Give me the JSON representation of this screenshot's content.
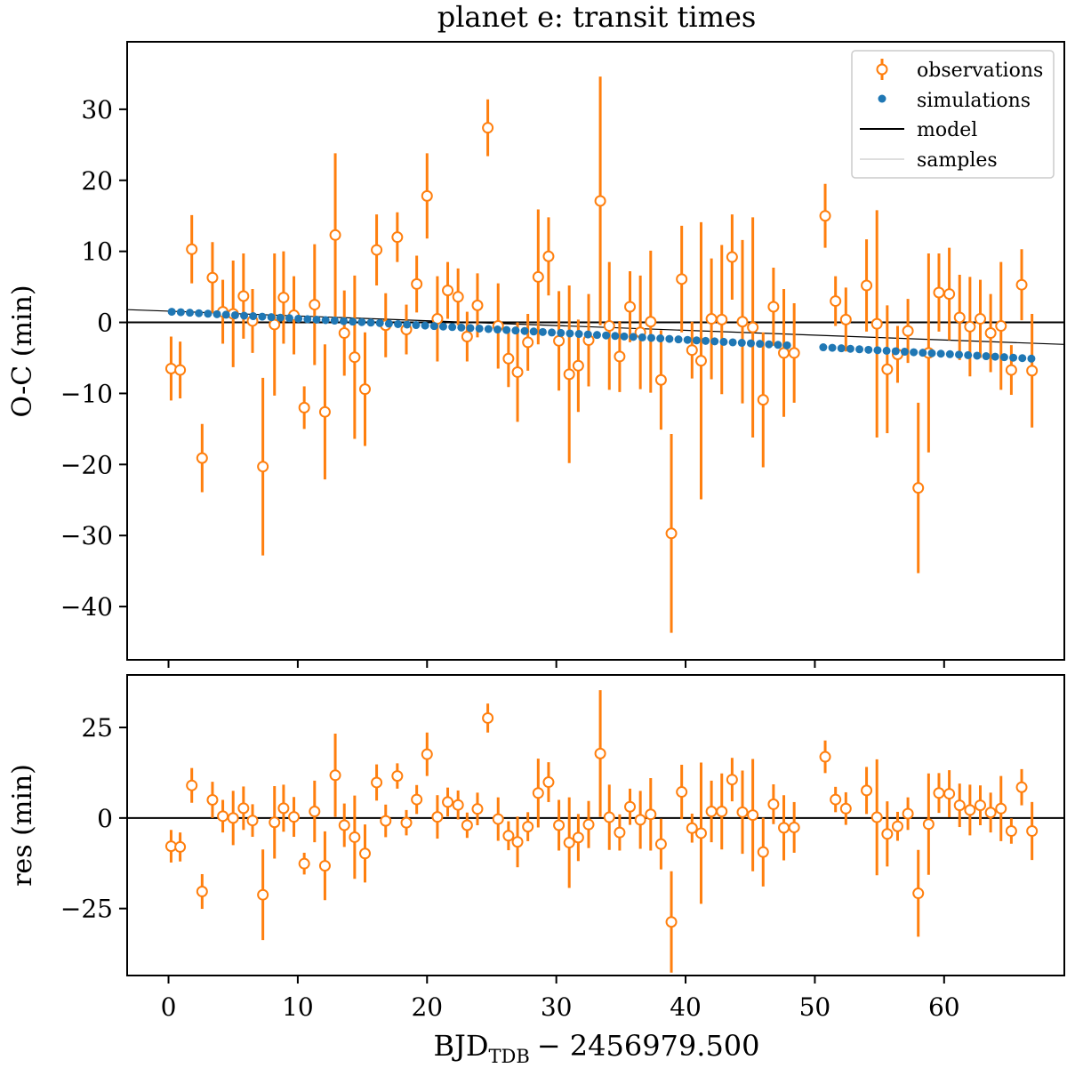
{
  "title": "planet e: transit times",
  "xlabel_main": "BJD",
  "xlabel_sub": "TDB",
  "xlabel_rest": "− 2456979.500",
  "legend": {
    "observations": "observations",
    "simulations": "simulations",
    "model": "model",
    "samples": "samples"
  },
  "colors": {
    "observations": "#ff7f0e",
    "simulations": "#1f77b4",
    "model": "#000000",
    "samples": "#d3d3d3"
  },
  "chart_data": [
    {
      "type": "scatter",
      "panel": "top",
      "ylabel": "O-C (min)",
      "xlim": [
        -3.2,
        69.3
      ],
      "ylim": [
        -47.5,
        39.5
      ],
      "x_ticks": [
        0,
        10,
        20,
        30,
        40,
        50,
        60
      ],
      "y_ticks": [
        30,
        20,
        10,
        0,
        -10,
        -20,
        -30,
        -40
      ],
      "y_tick_labels": [
        "30",
        "20",
        "10",
        "0",
        "−10",
        "−20",
        "−30",
        "−40"
      ],
      "model_line": {
        "x": [
          -3.2,
          69.3
        ],
        "y": [
          0,
          0
        ]
      },
      "trend_line": {
        "x": [
          -3.2,
          69.3
        ],
        "y": [
          1.8,
          -3.1
        ]
      },
      "simulations": {
        "name": "simulations",
        "x_start": 0.25,
        "x_step": 0.7,
        "count": 96,
        "y_start": 1.5,
        "y_step": -0.0695,
        "gap": [
          48.5,
          50.5
        ]
      },
      "observations": {
        "name": "observations",
        "x": [
          0.2,
          0.9,
          1.8,
          2.6,
          3.4,
          4.2,
          5.0,
          5.8,
          6.5,
          7.3,
          8.2,
          8.9,
          9.7,
          10.5,
          11.3,
          12.1,
          12.9,
          13.6,
          14.4,
          15.2,
          16.1,
          16.8,
          17.7,
          18.4,
          19.2,
          20.0,
          20.8,
          21.6,
          22.4,
          23.1,
          23.9,
          24.7,
          25.5,
          26.3,
          27.0,
          27.8,
          28.6,
          29.4,
          30.2,
          31.0,
          31.7,
          32.5,
          33.4,
          34.1,
          34.9,
          35.7,
          36.5,
          37.3,
          38.1,
          38.9,
          39.7,
          40.5,
          41.2,
          42.0,
          42.8,
          43.6,
          44.4,
          45.2,
          46.0,
          46.8,
          47.6,
          48.4,
          50.8,
          51.6,
          52.4,
          54.0,
          54.8,
          55.6,
          56.4,
          57.2,
          58.0,
          58.8,
          59.6,
          60.4,
          61.2,
          62.0,
          62.8,
          63.6,
          64.4,
          65.2,
          66.0,
          66.8
        ],
        "y": [
          -6.5,
          -6.7,
          10.3,
          -19.1,
          6.3,
          1.5,
          1.2,
          3.7,
          0.2,
          -20.3,
          -0.3,
          3.5,
          1.0,
          -12.0,
          2.5,
          -12.6,
          12.3,
          -1.5,
          -4.9,
          -9.4,
          10.2,
          -0.4,
          12.0,
          -1.0,
          5.4,
          17.8,
          0.5,
          4.5,
          3.6,
          -2.0,
          2.4,
          27.4,
          -0.5,
          -5.1,
          -7.0,
          -2.8,
          6.4,
          9.3,
          -2.6,
          -7.3,
          -6.1,
          -2.5,
          17.1,
          -0.5,
          -4.8,
          2.2,
          -1.4,
          0.1,
          -8.1,
          -29.7,
          6.1,
          -3.9,
          -5.4,
          0.5,
          0.4,
          9.2,
          0.1,
          -0.7,
          -10.9,
          2.2,
          -4.3,
          -4.3,
          15.0,
          3.0,
          0.4,
          5.2,
          -0.2,
          -6.6,
          -4.5,
          -1.2,
          -23.3,
          -4.3,
          4.2,
          4.0,
          0.7,
          -0.6,
          0.5,
          -1.5,
          -0.5,
          -6.7,
          5.3,
          -6.8
        ],
        "yerr": [
          4.5,
          4.0,
          4.8,
          4.8,
          5.0,
          4.5,
          7.5,
          6.0,
          4.5,
          12.5,
          10.0,
          6.5,
          5.5,
          3.0,
          8.5,
          9.5,
          11.5,
          6.0,
          11.5,
          8.0,
          5.0,
          4.5,
          3.5,
          3.5,
          4.0,
          6.0,
          6.0,
          4.0,
          4.0,
          3.5,
          4.5,
          4.0,
          6.0,
          4.0,
          7.0,
          4.0,
          9.5,
          5.5,
          7.0,
          12.5,
          6.5,
          6.5,
          17.5,
          9.0,
          5.0,
          5.0,
          8.0,
          10.0,
          7.0,
          14.0,
          7.5,
          4.0,
          19.5,
          8.5,
          10.5,
          6.0,
          11.5,
          15.5,
          9.5,
          5.5,
          9.0,
          7.0,
          4.5,
          3.5,
          4.5,
          6.5,
          16.0,
          9.0,
          4.0,
          4.5,
          12.0,
          14.0,
          5.5,
          6.5,
          6.0,
          7.0,
          5.5,
          5.5,
          9.0,
          3.5,
          5.0,
          8.0
        ]
      }
    },
    {
      "type": "scatter",
      "panel": "bottom",
      "ylabel": "res (min)",
      "xlabel": "BJD_TDB − 2456979.500",
      "xlim": [
        -3.2,
        69.3
      ],
      "ylim": [
        -43.5,
        39.5
      ],
      "x_ticks": [
        0,
        10,
        20,
        30,
        40,
        50,
        60
      ],
      "x_tick_labels": [
        "0",
        "10",
        "20",
        "30",
        "40",
        "50",
        "60"
      ],
      "y_ticks": [
        25,
        0,
        -25
      ],
      "y_tick_labels": [
        "25",
        "0",
        "−25"
      ],
      "zero_line": {
        "x": [
          -3.2,
          69.3
        ],
        "y": [
          0,
          0
        ]
      },
      "observations": {
        "name": "observations",
        "x": [
          0.2,
          0.9,
          1.8,
          2.6,
          3.4,
          4.2,
          5.0,
          5.8,
          6.5,
          7.3,
          8.2,
          8.9,
          9.7,
          10.5,
          11.3,
          12.1,
          12.9,
          13.6,
          14.4,
          15.2,
          16.1,
          16.8,
          17.7,
          18.4,
          19.2,
          20.0,
          20.8,
          21.6,
          22.4,
          23.1,
          23.9,
          24.7,
          25.5,
          26.3,
          27.0,
          27.8,
          28.6,
          29.4,
          30.2,
          31.0,
          31.7,
          32.5,
          33.4,
          34.1,
          34.9,
          35.7,
          36.5,
          37.3,
          38.1,
          38.9,
          39.7,
          40.5,
          41.2,
          42.0,
          42.8,
          43.6,
          44.4,
          45.2,
          46.0,
          46.8,
          47.6,
          48.4,
          50.8,
          51.6,
          52.4,
          54.0,
          54.8,
          55.6,
          56.4,
          57.2,
          58.0,
          58.8,
          59.6,
          60.4,
          61.2,
          62.0,
          62.8,
          63.6,
          64.4,
          65.2,
          66.0,
          66.8
        ],
        "y": [
          -7.8,
          -8.0,
          9.0,
          -20.3,
          5.0,
          0.5,
          0.0,
          2.7,
          -0.7,
          -21.2,
          -1.2,
          2.7,
          0.3,
          -12.6,
          1.8,
          -13.2,
          11.8,
          -2.0,
          -5.3,
          -9.8,
          9.8,
          -0.8,
          11.6,
          -1.3,
          5.1,
          17.6,
          0.3,
          4.4,
          3.6,
          -2.0,
          2.5,
          27.6,
          -0.3,
          -4.9,
          -6.6,
          -2.4,
          6.9,
          9.9,
          -2.0,
          -6.8,
          -5.4,
          -1.8,
          17.8,
          0.2,
          -4.0,
          3.1,
          -0.5,
          1.0,
          -7.2,
          -28.7,
          7.2,
          -2.8,
          -4.2,
          1.8,
          1.8,
          10.6,
          1.6,
          0.8,
          -9.4,
          3.8,
          -2.7,
          -2.6,
          16.9,
          5.1,
          2.6,
          7.6,
          0.2,
          -4.4,
          -2.3,
          1.2,
          -20.8,
          -1.7,
          6.9,
          6.7,
          3.5,
          2.2,
          3.5,
          1.5,
          2.6,
          -3.6,
          8.5,
          -3.6
        ],
        "yerr": [
          4.5,
          4.0,
          4.8,
          4.8,
          5.0,
          4.5,
          7.5,
          6.0,
          4.5,
          12.5,
          10.0,
          6.5,
          5.5,
          3.0,
          8.5,
          9.5,
          11.5,
          6.0,
          11.5,
          8.0,
          5.0,
          4.5,
          3.5,
          3.5,
          4.0,
          6.0,
          6.0,
          4.0,
          4.0,
          3.5,
          4.5,
          4.0,
          6.0,
          4.0,
          7.0,
          4.0,
          9.5,
          5.5,
          7.0,
          12.5,
          6.5,
          6.5,
          17.5,
          9.0,
          5.0,
          5.0,
          8.0,
          10.0,
          7.0,
          14.0,
          7.5,
          4.0,
          19.5,
          8.5,
          10.5,
          6.0,
          11.5,
          15.5,
          9.5,
          5.5,
          9.0,
          7.0,
          4.5,
          3.5,
          4.5,
          6.5,
          16.0,
          9.0,
          4.0,
          4.5,
          12.0,
          14.0,
          5.5,
          6.5,
          6.0,
          7.0,
          5.5,
          5.5,
          9.0,
          3.5,
          5.0,
          8.0
        ]
      }
    }
  ]
}
